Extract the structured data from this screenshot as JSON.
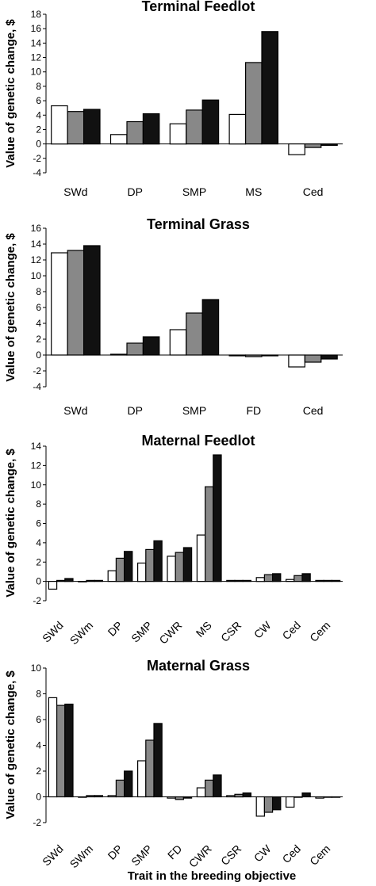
{
  "figure": {
    "xlabel": "Trait in the breeding objective"
  },
  "chart_data": [
    {
      "type": "bar",
      "title": "Terminal Feedlot",
      "ylabel": "Value of genetic change, $",
      "ylim": [
        -4,
        18
      ],
      "yticks": [
        -4,
        -2,
        0,
        2,
        4,
        6,
        8,
        10,
        12,
        14,
        16,
        18
      ],
      "categories": [
        "SWd",
        "DP",
        "SMP",
        "MS",
        "Ced"
      ],
      "rotated_labels": false,
      "series": [
        {
          "color": "#ffffff",
          "values": [
            5.3,
            1.3,
            2.8,
            4.1,
            -1.5
          ]
        },
        {
          "color": "#888888",
          "values": [
            4.5,
            3.1,
            4.7,
            11.3,
            -0.5
          ]
        },
        {
          "color": "#111111",
          "values": [
            4.8,
            4.2,
            6.1,
            15.6,
            -0.2
          ]
        }
      ]
    },
    {
      "type": "bar",
      "title": "Terminal Grass",
      "ylabel": "Value of genetic change, $",
      "ylim": [
        -4,
        16
      ],
      "yticks": [
        -4,
        -2,
        0,
        2,
        4,
        6,
        8,
        10,
        12,
        14,
        16
      ],
      "categories": [
        "SWd",
        "DP",
        "SMP",
        "FD",
        "Ced"
      ],
      "rotated_labels": false,
      "series": [
        {
          "color": "#ffffff",
          "values": [
            12.9,
            0.1,
            3.2,
            -0.1,
            -1.5
          ]
        },
        {
          "color": "#888888",
          "values": [
            13.2,
            1.5,
            5.3,
            -0.2,
            -0.9
          ]
        },
        {
          "color": "#111111",
          "values": [
            13.8,
            2.3,
            7.0,
            -0.1,
            -0.5
          ]
        }
      ]
    },
    {
      "type": "bar",
      "title": "Maternal Feedlot",
      "ylabel": "Value of genetic change, $",
      "ylim": [
        -2,
        14
      ],
      "yticks": [
        -2,
        0,
        2,
        4,
        6,
        8,
        10,
        12,
        14
      ],
      "categories": [
        "SWd",
        "SWm",
        "DP",
        "SMP",
        "CWR",
        "MS",
        "CSR",
        "CW",
        "Ced",
        "Cem"
      ],
      "rotated_labels": true,
      "series": [
        {
          "color": "#ffffff",
          "values": [
            -0.8,
            0.0,
            1.1,
            1.9,
            2.6,
            4.8,
            0.1,
            0.4,
            0.2,
            0.1
          ]
        },
        {
          "color": "#888888",
          "values": [
            0.1,
            0.1,
            2.4,
            3.3,
            3.0,
            9.8,
            0.1,
            0.7,
            0.6,
            0.1
          ]
        },
        {
          "color": "#111111",
          "values": [
            0.3,
            0.1,
            3.1,
            4.2,
            3.5,
            13.1,
            0.1,
            0.8,
            0.8,
            0.1
          ]
        }
      ]
    },
    {
      "type": "bar",
      "title": "Maternal Grass",
      "ylabel": "Value of genetic change, $",
      "ylim": [
        -2,
        10
      ],
      "yticks": [
        -2,
        0,
        2,
        4,
        6,
        8,
        10
      ],
      "categories": [
        "SWd",
        "SWm",
        "DP",
        "SMP",
        "FD",
        "CWR",
        "CSR",
        "CW",
        "Ced",
        "Cem"
      ],
      "rotated_labels": true,
      "series": [
        {
          "color": "#ffffff",
          "values": [
            7.7,
            0.0,
            0.1,
            2.8,
            -0.1,
            0.7,
            0.1,
            -1.5,
            -0.8,
            -0.1
          ]
        },
        {
          "color": "#888888",
          "values": [
            7.1,
            0.1,
            1.3,
            4.4,
            -0.2,
            1.3,
            0.2,
            -1.2,
            0.0,
            0.0
          ]
        },
        {
          "color": "#111111",
          "values": [
            7.2,
            0.1,
            2.0,
            5.7,
            -0.1,
            1.7,
            0.3,
            -1.0,
            0.3,
            0.0
          ]
        }
      ]
    }
  ]
}
